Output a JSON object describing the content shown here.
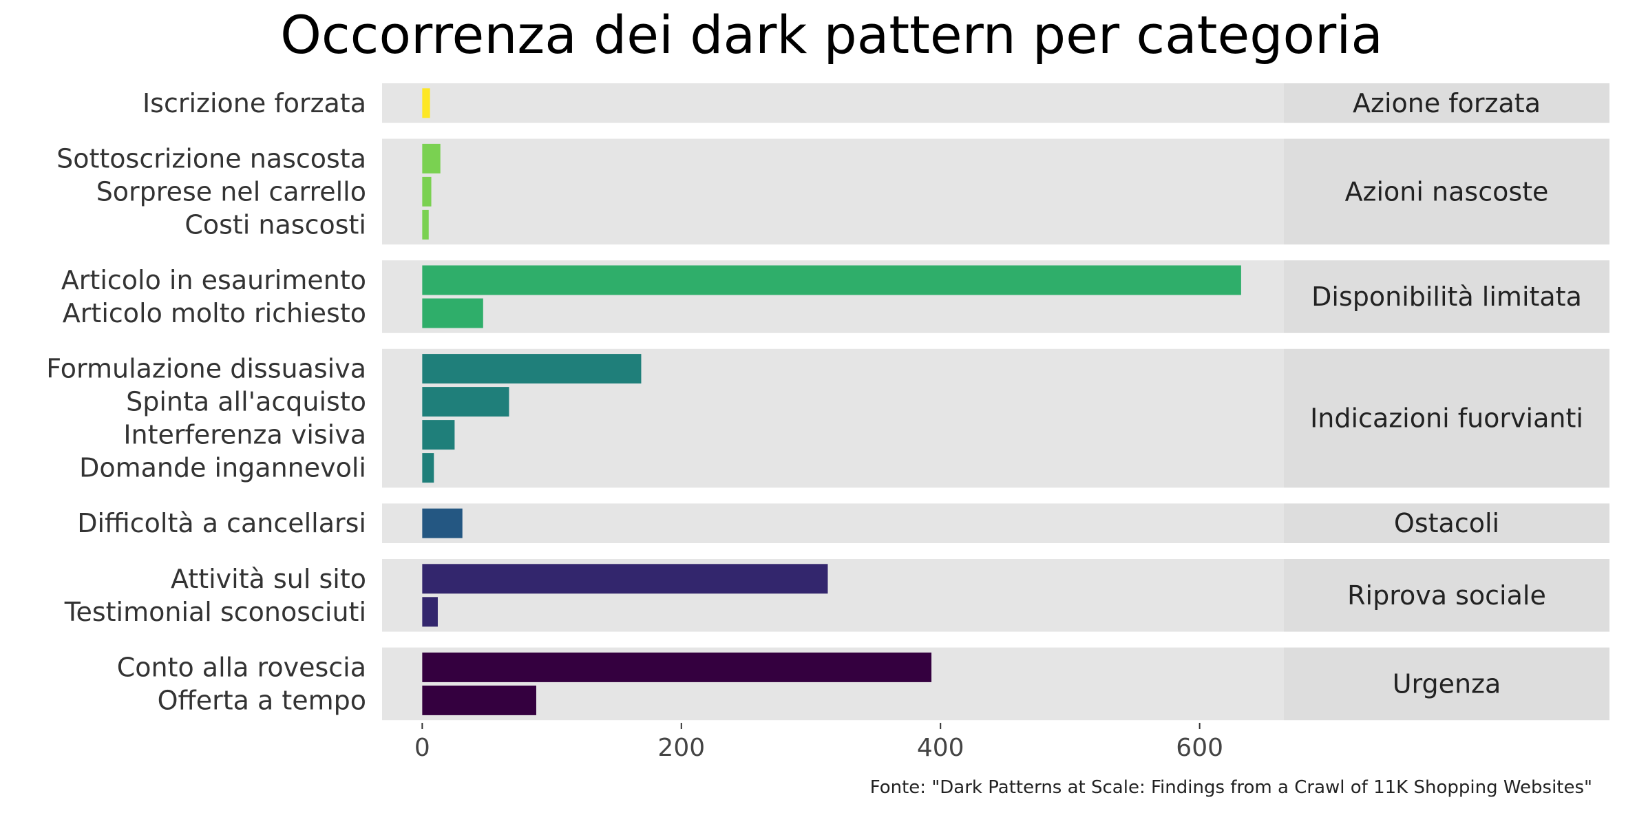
{
  "chart_data": {
    "type": "bar",
    "orientation": "horizontal",
    "title": "Occorrenza dei dark pattern per categoria",
    "caption": "Fonte: \"Dark Patterns at Scale: Findings from a Crawl of 11K Shopping Websites\"",
    "xlabel": "",
    "ylabel": "",
    "xlim": [
      -31,
      665
    ],
    "x_ticks": [
      0,
      200,
      400,
      600
    ],
    "grid": false,
    "legend": "none",
    "facets": [
      {
        "name": "Azione forzata",
        "color": "#FDE725",
        "items": [
          {
            "label": "Iscrizione forzata",
            "value": 6
          }
        ]
      },
      {
        "name": "Azioni nascoste",
        "color": "#7AD151",
        "items": [
          {
            "label": "Sottoscrizione nascosta",
            "value": 14
          },
          {
            "label": "Sorprese nel carrello",
            "value": 7
          },
          {
            "label": "Costi nascosti",
            "value": 5
          }
        ]
      },
      {
        "name": "Disponibilità limitata",
        "color": "#2FAE6A",
        "items": [
          {
            "label": "Articolo in esaurimento",
            "value": 632
          },
          {
            "label": "Articolo molto richiesto",
            "value": 47
          }
        ]
      },
      {
        "name": "Indicazioni fuorvianti",
        "color": "#1F7F7A",
        "items": [
          {
            "label": "Formulazione dissuasiva",
            "value": 169
          },
          {
            "label": "Spinta all'acquisto",
            "value": 67
          },
          {
            "label": "Interferenza visiva",
            "value": 25
          },
          {
            "label": "Domande ingannevoli",
            "value": 9
          }
        ]
      },
      {
        "name": "Ostacoli",
        "color": "#245782",
        "items": [
          {
            "label": "Difficoltà a cancellarsi",
            "value": 31
          }
        ]
      },
      {
        "name": "Riprova sociale",
        "color": "#33266D",
        "items": [
          {
            "label": "Attività sul sito",
            "value": 313
          },
          {
            "label": "Testimonial sconosciuti",
            "value": 12
          }
        ]
      },
      {
        "name": "Urgenza",
        "color": "#34003F",
        "items": [
          {
            "label": "Conto alla rovescia",
            "value": 393
          },
          {
            "label": "Offerta a tempo",
            "value": 88
          }
        ]
      }
    ]
  },
  "colors": {
    "panel_background": "#E5E5E5",
    "strip_background": "#DDDDDD"
  }
}
